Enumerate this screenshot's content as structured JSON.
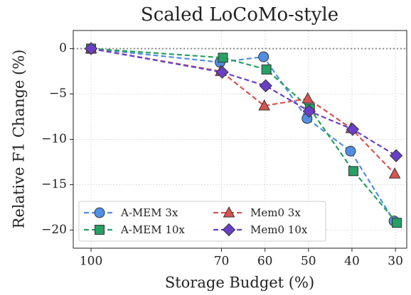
{
  "chart_data": {
    "type": "line",
    "title": "Scaled LoCoMo-style",
    "xlabel": "Storage Budget (%)",
    "ylabel": "Relative F1 Change (%)",
    "x": [
      100,
      70,
      60,
      50,
      40,
      30
    ],
    "xlim": [
      104.1,
      27.4
    ],
    "xticks": [
      100,
      70,
      60,
      50,
      40,
      30
    ],
    "ylim": [
      -22,
      2
    ],
    "yticks": [
      {
        "value": 0,
        "label": "0"
      },
      {
        "value": -5,
        "label": "−5"
      },
      {
        "value": -10,
        "label": "−10"
      },
      {
        "value": -15,
        "label": "−15"
      },
      {
        "value": -20,
        "label": "−20"
      }
    ],
    "grid": true,
    "reference_line": 0,
    "legend": "lower left",
    "series": [
      {
        "name": "A-MEM 3x",
        "color": "#4f8fe6",
        "marker": "circle",
        "values": [
          0,
          -1.5,
          -0.9,
          -7.7,
          -11.3,
          -19.0
        ]
      },
      {
        "name": "A-MEM 10x",
        "color": "#26a063",
        "marker": "square",
        "values": [
          0,
          -1.0,
          -2.3,
          -6.6,
          -13.5,
          -19.2
        ]
      },
      {
        "name": "Mem0 3x",
        "color": "#d9534f",
        "marker": "triangle",
        "values": [
          0,
          -2.5,
          -6.3,
          -5.5,
          -8.8,
          -13.8
        ]
      },
      {
        "name": "Mem0 10x",
        "color": "#6a3fc8",
        "marker": "diamond",
        "values": [
          0,
          -2.6,
          -4.1,
          -6.9,
          -8.9,
          -11.8
        ]
      }
    ]
  }
}
